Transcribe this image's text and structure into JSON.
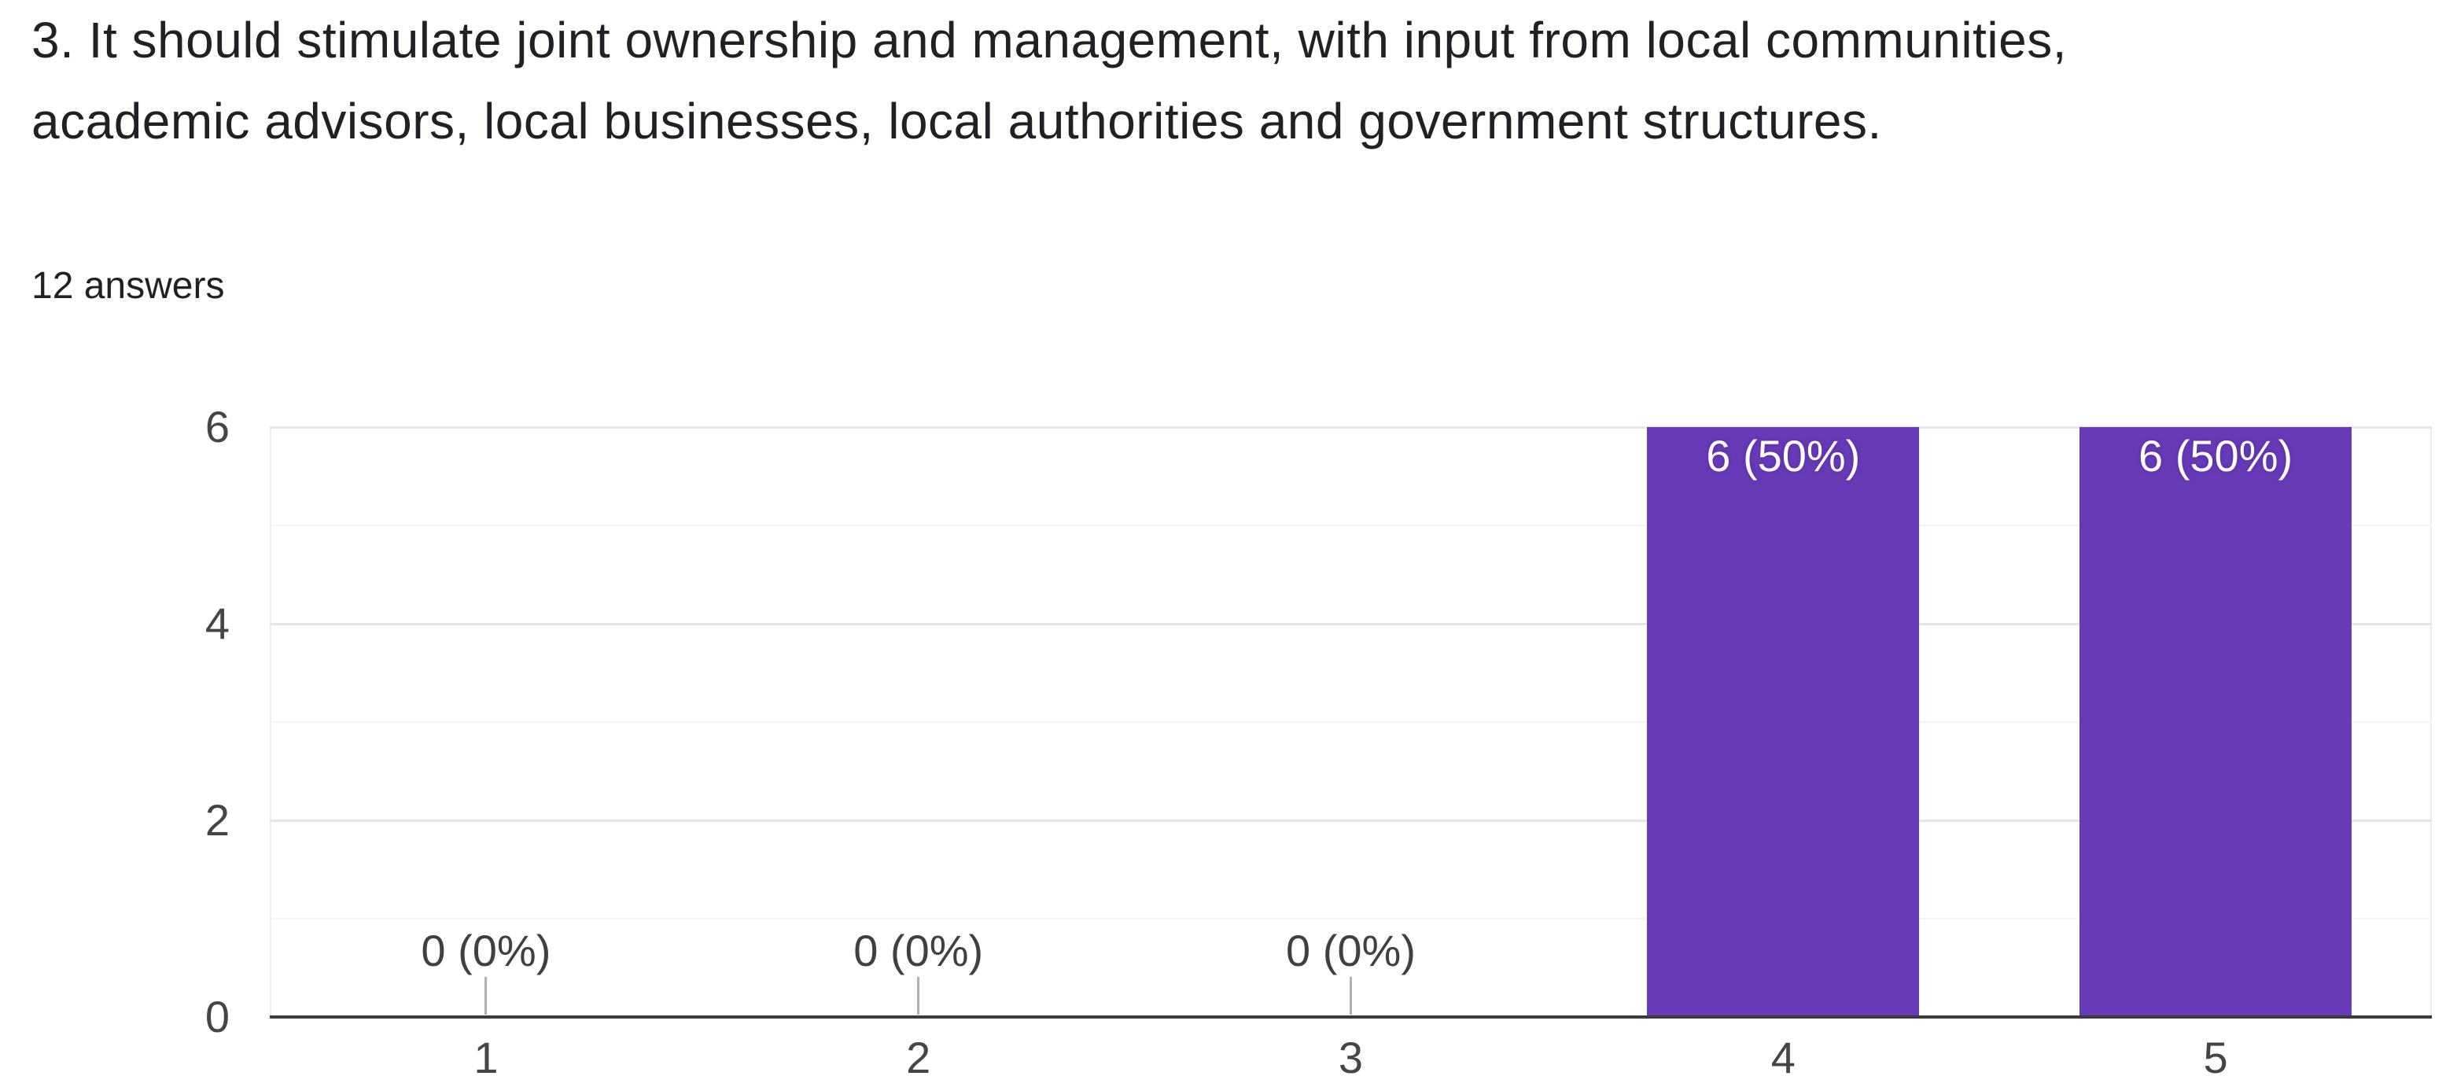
{
  "title": "3. It should stimulate joint ownership and management, with input from local communities, academic advisors, local businesses, local authorities and government structures.",
  "answers_count_label": "12 answers",
  "colors": {
    "background": "#ffffff",
    "bar": "#673ab7",
    "bar_label_text": "#ffffff",
    "title_text": "#202124",
    "axis_tick_text": "#454545",
    "annotation_text": "#404040",
    "axis_line": "#3a3b3d",
    "gridline_major": "#e5e5e5",
    "gridline_minor": "#f4f4f4",
    "leader_line": "#b0b0b0"
  },
  "chart_data": {
    "type": "bar",
    "title": "",
    "xlabel": "",
    "ylabel": "",
    "categories": [
      "1",
      "2",
      "3",
      "4",
      "5"
    ],
    "values": [
      0,
      0,
      0,
      6,
      6
    ],
    "bar_labels": [
      "0 (0%)",
      "0 (0%)",
      "0 (0%)",
      "6 (50%)",
      "6 (50%)"
    ],
    "total_answers": 12,
    "ylim": [
      0,
      6
    ],
    "yticks": [
      0,
      2,
      4,
      6
    ],
    "minor_gridlines": [
      1,
      3,
      5
    ],
    "grid": true,
    "legend": "none"
  }
}
